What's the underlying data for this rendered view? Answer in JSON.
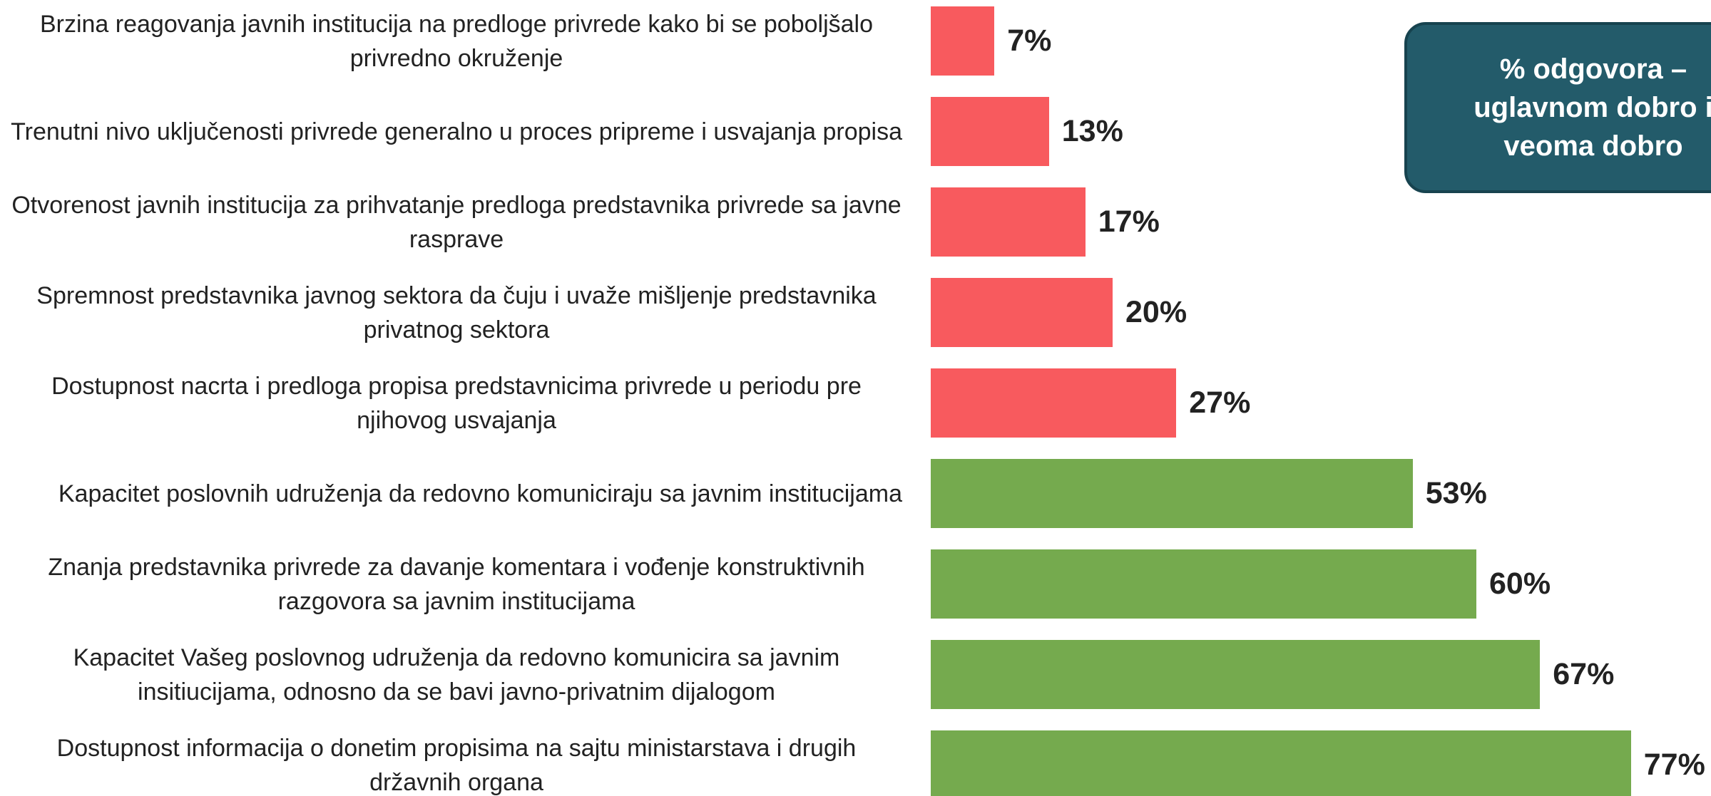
{
  "chart_data": {
    "type": "bar",
    "orientation": "horizontal",
    "title": "% odgovora – uglavnom dobro i veoma dobro",
    "categories": [
      "Brzina reagovanja javnih institucija na predloge privrede kako bi se poboljšalo privredno okruženje",
      "Trenutni nivo uključenosti privrede generalno u proces pripreme i usvajanja propisa",
      "Otvorenost javnih institucija za prihvatanje predloga predstavnika privrede sa javne rasprave",
      "Spremnost predstavnika javnog sektora da čuju i uvaže mišljenje predstavnika privatnog sektora",
      "Dostupnost nacrta i predloga propisa predstavnicima privrede u periodu pre njihovog usvajanja",
      "Kapacitet poslovnih udruženja da redovno komuniciraju sa javnim institucijama",
      "Znanja predstavnika privrede za davanje komentara i vođenje konstruktivnih razgovora sa javnim institucijama",
      "Kapacitet Vašeg poslovnog udruženja da redovno komunicira sa javnim insitiucijama, odnosno da se bavi javno-privatnim dijalogom",
      "Dostupnost informacija o donetim propisima na sajtu ministarstava i drugih državnih organa"
    ],
    "values": [
      7,
      13,
      17,
      20,
      27,
      53,
      60,
      67,
      77
    ],
    "value_labels": [
      "7%",
      "13%",
      "17%",
      "20%",
      "27%",
      "53%",
      "60%",
      "67%",
      "77%"
    ],
    "colors": [
      "#f85a5e",
      "#f85a5e",
      "#f85a5e",
      "#f85a5e",
      "#f85a5e",
      "#75aa4e",
      "#75aa4e",
      "#75aa4e",
      "#75aa4e"
    ],
    "xlim": [
      0,
      100
    ]
  }
}
